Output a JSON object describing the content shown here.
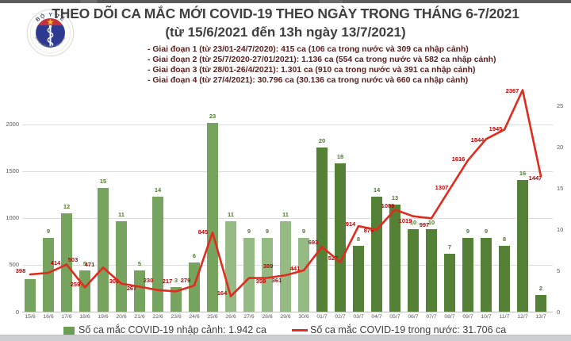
{
  "header": {
    "title": "THEO DÕI CA MẮC MỚI COVID-19 THEO NGÀY TRONG THÁNG 6-7/2021",
    "subtitle": "(từ 15/6/2021 đến 13h ngày 13/7/2021)",
    "phases": [
      "- Giai đoạn 1 (từ 23/01-24/7/2020): 415 ca (106 ca trong nước và 309 ca nhập cảnh)",
      "- Giai đoạn 2 (từ 25/7/2020-27/01/2021): 1.136 ca (554 ca trong nước và 582 ca nhập cảnh)",
      "- Giai đoạn 3 (từ 28/01-26/4/2021): 1.301 ca (910 ca trong nước và 391 ca nhập cảnh)",
      "- Giai đoạn 4 (từ 27/4/2021): 30.796 ca (30.136 ca trong nước và 660 ca nhập cảnh)"
    ]
  },
  "logo": {
    "arc_top": "BỘ Y TẾ",
    "arc_bottom": "MINISTRY OF HEALTH",
    "colors": {
      "flag_red": "#c4333c",
      "star_yellow": "#f5c518",
      "disc_blue": "#2c3a92"
    }
  },
  "chart_data": {
    "type": "bar+line",
    "categories": [
      "15/6",
      "16/6",
      "17/6",
      "18/6",
      "19/6",
      "20/6",
      "21/6",
      "22/6",
      "23/6",
      "24/6",
      "25/6",
      "26/6",
      "27/6",
      "28/6",
      "29/6",
      "30/6",
      "01/7",
      "02/7",
      "03/7",
      "04/7",
      "05/7",
      "06/7",
      "07/7",
      "08/7",
      "09/7",
      "10/7",
      "11/7",
      "12/7",
      "13/7"
    ],
    "series": [
      {
        "name": "Số ca mắc COVID-19 nhập cảnh",
        "chart": "bar",
        "axis": "right",
        "values": [
          4,
          9,
          12,
          5,
          15,
          11,
          5,
          14,
          3,
          6,
          23,
          11,
          9,
          9,
          11,
          9,
          20,
          18,
          8,
          14,
          13,
          10,
          10,
          7,
          9,
          9,
          8,
          16,
          2
        ],
        "color_ranges": [
          {
            "from": 0,
            "to": 10,
            "color": "#76a45e"
          },
          {
            "from": 11,
            "to": 15,
            "color": "#95ba84"
          },
          {
            "from": 16,
            "to": 28,
            "color": "#548136"
          }
        ],
        "label_color": "#4e7a2e"
      },
      {
        "name": "Số ca mắc COVID-19 trong nước",
        "chart": "line",
        "axis": "left",
        "values": [
          398,
          414,
          503,
          259,
          471,
          300,
          267,
          230,
          217,
          279,
          845,
          164,
          359,
          361,
          389,
          441,
          693,
          527,
          914,
          876,
          1089,
          1019,
          997,
          1307,
          1616,
          1844,
          1945,
          2367,
          1447
        ],
        "color": "#e02b1e",
        "label_color": "#c00000"
      }
    ],
    "left_axis": {
      "ticks": [
        0,
        500,
        1000,
        1500,
        2000
      ],
      "max": 2380
    },
    "right_axis": {
      "ticks": [
        0,
        5,
        10,
        15,
        20,
        25
      ],
      "max": 27.1
    },
    "gridlines": "left-axis",
    "legend": [
      {
        "swatch": "square",
        "color": "#6a9e53",
        "label": "Số ca mắc COVID-19 nhập cảnh: 1.942 ca"
      },
      {
        "swatch": "line",
        "color": "#e02b1e",
        "label": "Số ca mắc COVID-19 trong nước: 31.706 ca"
      }
    ]
  }
}
